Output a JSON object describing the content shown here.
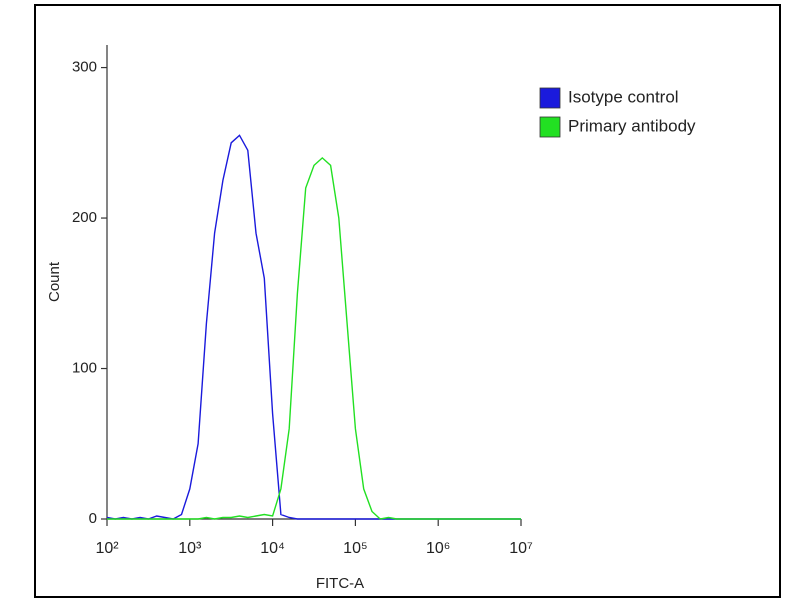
{
  "chart_data": {
    "type": "line",
    "xlabel": "FITC-A",
    "ylabel": "Count",
    "xscale": "log",
    "xlim": [
      100,
      10000000
    ],
    "ylim": [
      0,
      315
    ],
    "xticks": [
      {
        "value": 100,
        "label": "10²"
      },
      {
        "value": 1000,
        "label": "10³"
      },
      {
        "value": 10000,
        "label": "10⁴"
      },
      {
        "value": 100000,
        "label": "10⁵"
      },
      {
        "value": 1000000,
        "label": "10⁶"
      },
      {
        "value": 10000000,
        "label": "10⁷"
      }
    ],
    "yticks": [
      0,
      100,
      200,
      300
    ],
    "legend": "upper-right-outside",
    "x": [
      100,
      126,
      158,
      200,
      251,
      316,
      398,
      501,
      631,
      794,
      1000,
      1259,
      1585,
      1995,
      2512,
      3162,
      3981,
      5012,
      6310,
      7943,
      10000,
      12589,
      15849,
      19953,
      25119,
      31623,
      39811,
      50119,
      63096,
      79433,
      100000,
      125893,
      158489,
      199526,
      251189,
      316228,
      398107,
      501187,
      630957,
      794328,
      1000000,
      1258925,
      1584893,
      1995262,
      2511886,
      3162278,
      3981072,
      5011872,
      6309573,
      7943282,
      10000000
    ],
    "series": [
      {
        "name": "Isotype control",
        "color": "#1a1adc",
        "values": [
          1,
          0,
          1,
          0,
          1,
          0,
          2,
          1,
          0,
          3,
          20,
          50,
          130,
          190,
          225,
          250,
          255,
          245,
          190,
          160,
          70,
          3,
          1,
          0,
          0,
          0,
          0,
          0,
          0,
          0,
          0,
          0,
          0,
          0,
          0,
          0,
          0,
          0,
          0,
          0,
          0,
          0,
          0,
          0,
          0,
          0,
          0,
          0,
          0,
          0,
          0
        ]
      },
      {
        "name": "Primary antibody",
        "color": "#22e022",
        "values": [
          0,
          0,
          0,
          0,
          0,
          0,
          0,
          0,
          0,
          0,
          0,
          0,
          1,
          0,
          1,
          1,
          2,
          1,
          2,
          3,
          2,
          20,
          60,
          150,
          220,
          235,
          240,
          235,
          200,
          130,
          60,
          20,
          5,
          0,
          1,
          0,
          0,
          0,
          0,
          0,
          0,
          0,
          0,
          0,
          0,
          0,
          0,
          0,
          0,
          0,
          0
        ]
      }
    ]
  }
}
